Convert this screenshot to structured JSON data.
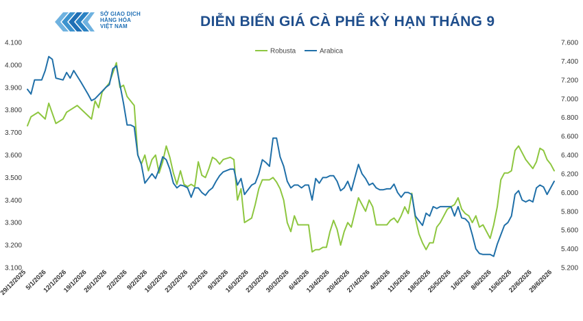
{
  "header": {
    "org_line1": "SỞ GIAO DỊCH",
    "org_line2": "HÀNG HÓA",
    "org_line3": "VIỆT NAM",
    "title": "DIỄN BIẾN GIÁ CÀ PHÊ KỲ HẠN THÁNG 9"
  },
  "colors": {
    "robusta": "#8dc63f",
    "arabica": "#1f6fa8",
    "brand": "#1f6fb5",
    "title": "#1f4e8c"
  },
  "chart_data": {
    "type": "line",
    "title": "DIỄN BIẾN GIÁ CÀ PHÊ KỲ HẠN THÁNG 9",
    "x_tick_labels": [
      "29/12/2025",
      "5/1/2026",
      "12/1/2026",
      "19/1/2026",
      "26/1/2026",
      "2/2/2026",
      "9/2/2026",
      "16/2/2026",
      "23/2/2026",
      "2/3/2026",
      "9/3/2026",
      "16/3/2026",
      "23/3/2026",
      "30/3/2026",
      "6/4/2026",
      "13/4/2026",
      "20/4/2026",
      "27/4/2026",
      "4/5/2026",
      "11/5/2026",
      "18/5/2026",
      "25/5/2026",
      "1/6/2026",
      "8/6/2026",
      "15/6/2026",
      "22/6/2026",
      "29/6/2026"
    ],
    "left_axis": {
      "series": "Robusta",
      "min": 3.1,
      "max": 4.1,
      "step": 0.1,
      "tick_labels": [
        "3.100",
        "3.200",
        "3.300",
        "3.400",
        "3.500",
        "3.600",
        "3.700",
        "3.800",
        "3.900",
        "4.000",
        "4.100"
      ]
    },
    "right_axis": {
      "series": "Arabica",
      "min": 5.2,
      "max": 7.6,
      "step": 0.2,
      "tick_labels": [
        "5.200",
        "5.400",
        "5.600",
        "5.800",
        "6.000",
        "6.200",
        "6.400",
        "6.600",
        "6.800",
        "7.000",
        "7.200",
        "7.400",
        "7.600"
      ]
    },
    "legend": {
      "position": "top-center"
    },
    "grid": false,
    "series": [
      {
        "name": "Robusta",
        "axis": "left",
        "values": [
          [
            0,
            3.73
          ],
          [
            1,
            3.77
          ],
          [
            3,
            3.79
          ],
          [
            5,
            3.76
          ],
          [
            6,
            3.83
          ],
          [
            8,
            3.74
          ],
          [
            10,
            3.76
          ],
          [
            11,
            3.79
          ],
          [
            12,
            3.8
          ],
          [
            14,
            3.82
          ],
          [
            16,
            3.79
          ],
          [
            18,
            3.76
          ],
          [
            19,
            3.84
          ],
          [
            20,
            3.81
          ],
          [
            21,
            3.88
          ],
          [
            23,
            3.92
          ],
          [
            25,
            4.01
          ],
          [
            26,
            3.9
          ],
          [
            27,
            3.91
          ],
          [
            28,
            3.86
          ],
          [
            30,
            3.82
          ],
          [
            31,
            3.6
          ],
          [
            32,
            3.56
          ],
          [
            33,
            3.6
          ],
          [
            34,
            3.53
          ],
          [
            35,
            3.58
          ],
          [
            36,
            3.6
          ],
          [
            37,
            3.52
          ],
          [
            38,
            3.57
          ],
          [
            39,
            3.64
          ],
          [
            40,
            3.59
          ],
          [
            41,
            3.52
          ],
          [
            42,
            3.47
          ],
          [
            43,
            3.53
          ],
          [
            44,
            3.47
          ],
          [
            45,
            3.46
          ],
          [
            46,
            3.47
          ],
          [
            47,
            3.46
          ],
          [
            48,
            3.57
          ],
          [
            49,
            3.51
          ],
          [
            50,
            3.5
          ],
          [
            51,
            3.54
          ],
          [
            52,
            3.59
          ],
          [
            53,
            3.58
          ],
          [
            54,
            3.56
          ],
          [
            55,
            3.58
          ],
          [
            57,
            3.59
          ],
          [
            58,
            3.58
          ],
          [
            59,
            3.4
          ],
          [
            60,
            3.45
          ],
          [
            61,
            3.3
          ],
          [
            62,
            3.31
          ],
          [
            63,
            3.32
          ],
          [
            64,
            3.38
          ],
          [
            65,
            3.45
          ],
          [
            66,
            3.49
          ],
          [
            68,
            3.49
          ],
          [
            69,
            3.5
          ],
          [
            70,
            3.48
          ],
          [
            71,
            3.45
          ],
          [
            72,
            3.4
          ],
          [
            73,
            3.3
          ],
          [
            74,
            3.26
          ],
          [
            75,
            3.33
          ],
          [
            76,
            3.29
          ],
          [
            77,
            3.29
          ],
          [
            78,
            3.29
          ],
          [
            79,
            3.29
          ],
          [
            80,
            3.17
          ],
          [
            81,
            3.18
          ],
          [
            82,
            3.18
          ],
          [
            83,
            3.19
          ],
          [
            84,
            3.19
          ],
          [
            85,
            3.26
          ],
          [
            86,
            3.31
          ],
          [
            87,
            3.27
          ],
          [
            88,
            3.2
          ],
          [
            89,
            3.26
          ],
          [
            90,
            3.3
          ],
          [
            91,
            3.28
          ],
          [
            93,
            3.41
          ],
          [
            94,
            3.38
          ],
          [
            95,
            3.35
          ],
          [
            96,
            3.4
          ],
          [
            97,
            3.37
          ],
          [
            98,
            3.29
          ],
          [
            99,
            3.29
          ],
          [
            100,
            3.29
          ],
          [
            101,
            3.29
          ],
          [
            102,
            3.31
          ],
          [
            103,
            3.32
          ],
          [
            104,
            3.3
          ],
          [
            105,
            3.33
          ],
          [
            106,
            3.37
          ],
          [
            107,
            3.34
          ],
          [
            108,
            3.43
          ],
          [
            109,
            3.32
          ],
          [
            110,
            3.25
          ],
          [
            111,
            3.21
          ],
          [
            112,
            3.18
          ],
          [
            113,
            3.21
          ],
          [
            114,
            3.21
          ],
          [
            115,
            3.28
          ],
          [
            116,
            3.3
          ],
          [
            117,
            3.33
          ],
          [
            118,
            3.36
          ],
          [
            119,
            3.37
          ],
          [
            120,
            3.38
          ],
          [
            121,
            3.41
          ],
          [
            122,
            3.36
          ],
          [
            123,
            3.34
          ],
          [
            124,
            3.33
          ],
          [
            125,
            3.3
          ],
          [
            126,
            3.33
          ],
          [
            127,
            3.28
          ],
          [
            128,
            3.29
          ],
          [
            129,
            3.26
          ],
          [
            130,
            3.23
          ],
          [
            131,
            3.29
          ],
          [
            132,
            3.37
          ],
          [
            133,
            3.49
          ],
          [
            134,
            3.52
          ],
          [
            135,
            3.52
          ],
          [
            136,
            3.53
          ],
          [
            137,
            3.62
          ],
          [
            138,
            3.64
          ],
          [
            139,
            3.61
          ],
          [
            140,
            3.58
          ],
          [
            141,
            3.56
          ],
          [
            142,
            3.54
          ],
          [
            143,
            3.57
          ],
          [
            144,
            3.63
          ],
          [
            145,
            3.62
          ],
          [
            146,
            3.58
          ],
          [
            147,
            3.56
          ],
          [
            148,
            3.53
          ]
        ]
      },
      {
        "name": "Arabica",
        "axis": "right",
        "values": [
          [
            0,
            7.1
          ],
          [
            1,
            7.05
          ],
          [
            2,
            7.2
          ],
          [
            4,
            7.2
          ],
          [
            5,
            7.3
          ],
          [
            6,
            7.45
          ],
          [
            7,
            7.42
          ],
          [
            8,
            7.22
          ],
          [
            10,
            7.2
          ],
          [
            11,
            7.28
          ],
          [
            12,
            7.22
          ],
          [
            13,
            7.3
          ],
          [
            15,
            7.18
          ],
          [
            17,
            7.05
          ],
          [
            18,
            6.98
          ],
          [
            19,
            7.0
          ],
          [
            21,
            7.08
          ],
          [
            22,
            7.12
          ],
          [
            23,
            7.15
          ],
          [
            24,
            7.32
          ],
          [
            25,
            7.35
          ],
          [
            26,
            7.15
          ],
          [
            27,
            6.95
          ],
          [
            28,
            6.72
          ],
          [
            29,
            6.72
          ],
          [
            30,
            6.7
          ],
          [
            31,
            6.4
          ],
          [
            32,
            6.3
          ],
          [
            33,
            6.1
          ],
          [
            34,
            6.15
          ],
          [
            35,
            6.2
          ],
          [
            36,
            6.15
          ],
          [
            37,
            6.25
          ],
          [
            38,
            6.38
          ],
          [
            39,
            6.35
          ],
          [
            40,
            6.25
          ],
          [
            41,
            6.1
          ],
          [
            42,
            6.05
          ],
          [
            43,
            6.08
          ],
          [
            44,
            6.07
          ],
          [
            45,
            6.05
          ],
          [
            46,
            5.95
          ],
          [
            47,
            6.05
          ],
          [
            48,
            6.05
          ],
          [
            49,
            6.0
          ],
          [
            50,
            5.97
          ],
          [
            51,
            6.02
          ],
          [
            52,
            6.05
          ],
          [
            53,
            6.12
          ],
          [
            54,
            6.18
          ],
          [
            55,
            6.22
          ],
          [
            57,
            6.25
          ],
          [
            58,
            6.25
          ],
          [
            59,
            6.08
          ],
          [
            60,
            6.15
          ],
          [
            61,
            5.98
          ],
          [
            62,
            6.03
          ],
          [
            63,
            6.08
          ],
          [
            64,
            6.1
          ],
          [
            65,
            6.2
          ],
          [
            66,
            6.35
          ],
          [
            67,
            6.32
          ],
          [
            68,
            6.28
          ],
          [
            69,
            6.58
          ],
          [
            70,
            6.58
          ],
          [
            71,
            6.38
          ],
          [
            72,
            6.28
          ],
          [
            73,
            6.12
          ],
          [
            74,
            6.05
          ],
          [
            75,
            6.08
          ],
          [
            76,
            6.08
          ],
          [
            77,
            6.05
          ],
          [
            78,
            6.08
          ],
          [
            79,
            6.08
          ],
          [
            80,
            5.92
          ],
          [
            81,
            6.15
          ],
          [
            82,
            6.1
          ],
          [
            83,
            6.16
          ],
          [
            84,
            6.16
          ],
          [
            85,
            6.18
          ],
          [
            86,
            6.18
          ],
          [
            87,
            6.12
          ],
          [
            88,
            6.02
          ],
          [
            89,
            6.05
          ],
          [
            90,
            6.12
          ],
          [
            91,
            6.02
          ],
          [
            93,
            6.3
          ],
          [
            94,
            6.2
          ],
          [
            95,
            6.15
          ],
          [
            96,
            6.08
          ],
          [
            97,
            6.1
          ],
          [
            98,
            6.05
          ],
          [
            99,
            6.03
          ],
          [
            100,
            6.03
          ],
          [
            101,
            6.04
          ],
          [
            102,
            6.04
          ],
          [
            103,
            6.09
          ],
          [
            104,
            6.0
          ],
          [
            105,
            5.95
          ],
          [
            106,
            6.0
          ],
          [
            107,
            6.0
          ],
          [
            108,
            5.98
          ],
          [
            109,
            5.75
          ],
          [
            110,
            5.7
          ],
          [
            111,
            5.65
          ],
          [
            112,
            5.78
          ],
          [
            113,
            5.75
          ],
          [
            114,
            5.85
          ],
          [
            115,
            5.83
          ],
          [
            116,
            5.85
          ],
          [
            117,
            5.85
          ],
          [
            118,
            5.85
          ],
          [
            119,
            5.85
          ],
          [
            120,
            5.75
          ],
          [
            121,
            5.85
          ],
          [
            122,
            5.73
          ],
          [
            123,
            5.72
          ],
          [
            124,
            5.68
          ],
          [
            125,
            5.55
          ],
          [
            126,
            5.4
          ],
          [
            127,
            5.35
          ],
          [
            128,
            5.34
          ],
          [
            129,
            5.34
          ],
          [
            130,
            5.34
          ],
          [
            131,
            5.32
          ],
          [
            132,
            5.45
          ],
          [
            133,
            5.55
          ],
          [
            134,
            5.65
          ],
          [
            135,
            5.68
          ],
          [
            136,
            5.75
          ],
          [
            137,
            5.98
          ],
          [
            138,
            6.02
          ],
          [
            139,
            5.92
          ],
          [
            140,
            5.9
          ],
          [
            141,
            5.92
          ],
          [
            142,
            5.9
          ],
          [
            143,
            6.05
          ],
          [
            144,
            6.08
          ],
          [
            145,
            6.06
          ],
          [
            146,
            5.98
          ],
          [
            147,
            6.05
          ],
          [
            148,
            6.12
          ]
        ]
      }
    ]
  }
}
